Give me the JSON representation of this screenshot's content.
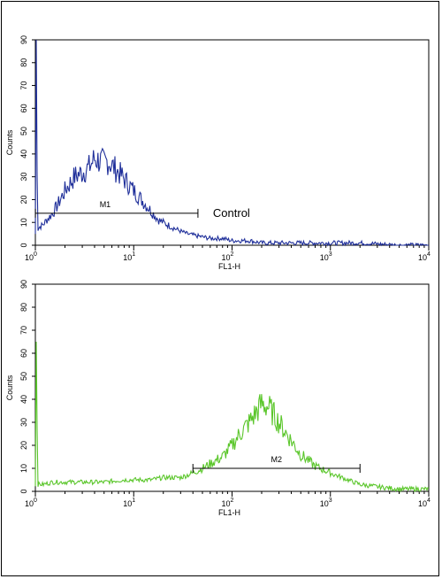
{
  "chart_data": [
    {
      "type": "histogram",
      "scale_x": "log",
      "xlim": [
        1,
        10000
      ],
      "ylim": [
        0,
        90
      ],
      "xlabel": "FL1-H",
      "ylabel": "Counts",
      "x_ticks": [
        {
          "base": "10",
          "exp": "0",
          "value": 1
        },
        {
          "base": "10",
          "exp": "1",
          "value": 10
        },
        {
          "base": "10",
          "exp": "2",
          "value": 100
        },
        {
          "base": "10",
          "exp": "3",
          "value": 1000
        },
        {
          "base": "10",
          "exp": "4",
          "value": 10000
        }
      ],
      "y_ticks": [
        "0",
        "10",
        "20",
        "30",
        "40",
        "50",
        "60",
        "70",
        "80",
        "90"
      ],
      "color": "#1f2f9a",
      "annotation": "Control",
      "gate": {
        "label": "M1",
        "x_start": 1.0,
        "x_end": 45,
        "y": 14
      },
      "series": [
        {
          "x": [
            1.0,
            1.1,
            1.2,
            1.3,
            1.5,
            1.7,
            2.0,
            2.5,
            3.0,
            3.5,
            4.0,
            4.5,
            5.0,
            5.5,
            6.0,
            7.0,
            8.0,
            10,
            12,
            15,
            18,
            22,
            27,
            35,
            45,
            60,
            80,
            100,
            150,
            200,
            300,
            500,
            1000,
            2000,
            5000,
            10000
          ],
          "y": [
            5,
            8,
            9,
            11,
            14,
            18,
            24,
            30,
            32,
            34,
            38,
            37,
            36,
            37,
            35,
            32,
            29,
            24,
            20,
            15,
            11,
            9,
            7,
            5,
            4,
            3,
            3,
            2,
            2,
            1,
            1,
            1,
            1,
            1,
            0,
            0
          ]
        }
      ]
    },
    {
      "type": "histogram",
      "scale_x": "log",
      "xlim": [
        1,
        10000
      ],
      "ylim": [
        0,
        90
      ],
      "xlabel": "FL1-H",
      "ylabel": "Counts",
      "x_ticks": [
        {
          "base": "10",
          "exp": "0",
          "value": 1
        },
        {
          "base": "10",
          "exp": "1",
          "value": 10
        },
        {
          "base": "10",
          "exp": "2",
          "value": 100
        },
        {
          "base": "10",
          "exp": "3",
          "value": 1000
        },
        {
          "base": "10",
          "exp": "4",
          "value": 10000
        }
      ],
      "y_ticks": [
        "0",
        "10",
        "20",
        "30",
        "40",
        "50",
        "60",
        "70",
        "80",
        "90"
      ],
      "color": "#5ac62a",
      "annotation": "",
      "gate": {
        "label": "M2",
        "x_start": 40,
        "x_end": 2000,
        "y": 10
      },
      "series": [
        {
          "x": [
            1.0,
            1.2,
            1.5,
            2.0,
            3.0,
            5.0,
            8.0,
            10,
            15,
            20,
            30,
            40,
            50,
            60,
            80,
            100,
            120,
            150,
            180,
            200,
            230,
            260,
            300,
            400,
            500,
            700,
            1000,
            1500,
            2000,
            3000,
            5000,
            7000,
            10000
          ],
          "y": [
            3,
            3,
            4,
            4,
            4,
            4,
            5,
            5,
            5,
            6,
            6,
            8,
            10,
            12,
            15,
            20,
            25,
            30,
            35,
            38,
            37,
            34,
            30,
            22,
            16,
            11,
            8,
            5,
            3,
            2,
            1,
            1,
            1
          ]
        }
      ]
    }
  ]
}
